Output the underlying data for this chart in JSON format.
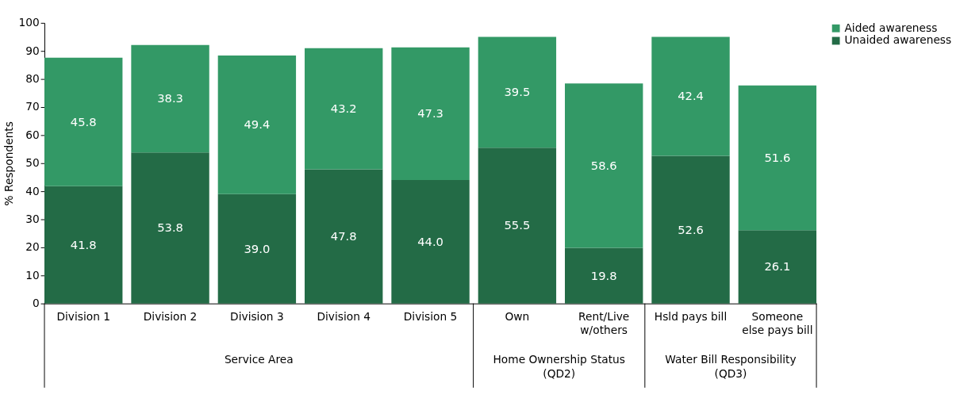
{
  "chart_data": {
    "type": "bar",
    "stacked": true,
    "ylabel": "% Respondents",
    "categories": [
      "Division 1",
      "Division 2",
      "Division 3",
      "Division 4",
      "Division 5",
      "Own",
      "Rent/Live w/others",
      "Hsld pays bill",
      "Someone else pays bill"
    ],
    "series": [
      {
        "name": "Unaided awareness",
        "color": "#236b46",
        "values": [
          41.8,
          53.8,
          39.0,
          47.8,
          44.0,
          55.5,
          19.8,
          52.6,
          26.1
        ],
        "value_labels": [
          "41.8",
          "53.8",
          "39.0",
          "47.8",
          "44.0",
          "55.5",
          "19.8",
          "52.6",
          "26.1"
        ]
      },
      {
        "name": "Aided awareness",
        "color": "#339966",
        "values": [
          45.8,
          38.3,
          49.4,
          43.2,
          47.3,
          39.5,
          58.6,
          42.4,
          51.6
        ],
        "value_labels": [
          "45.8",
          "38.3",
          "49.4",
          "43.2",
          "47.3",
          "39.5",
          "58.6",
          "42.4",
          "51.6"
        ]
      }
    ],
    "annotations": [
      "Service Area",
      "Home Ownership Status (QD2)",
      "Water Bill Responsibility (QD3)"
    ],
    "ylim": [
      0,
      100
    ],
    "yticks": [
      0,
      10,
      20,
      30,
      40,
      50,
      60,
      70,
      80,
      90,
      100
    ],
    "grid": false,
    "legend": "right"
  }
}
